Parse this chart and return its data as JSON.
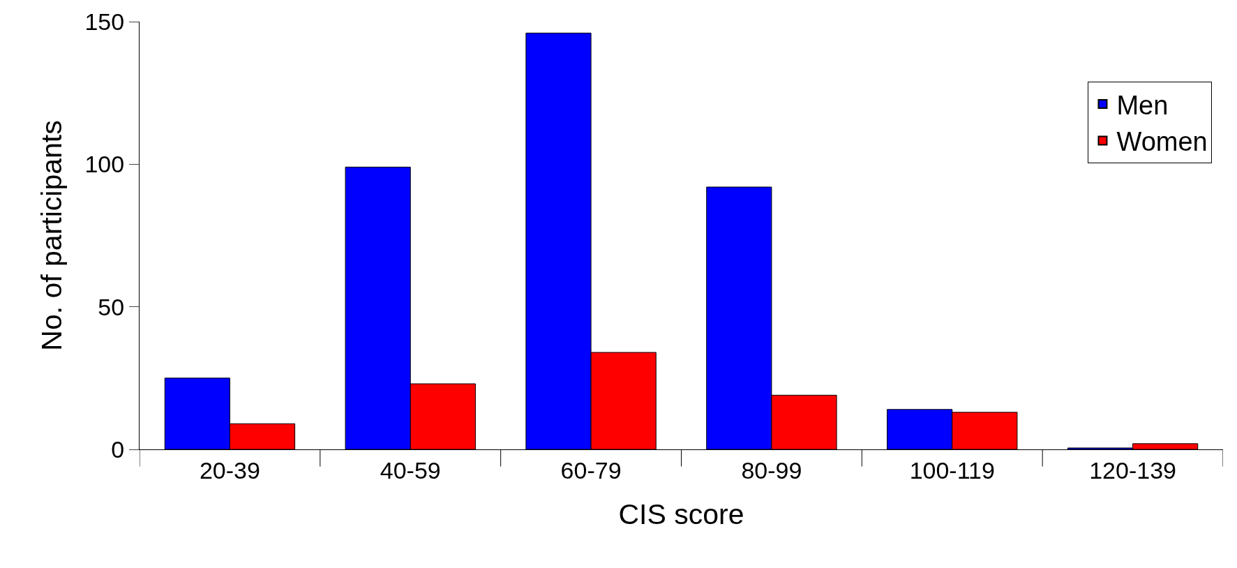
{
  "chart_data": {
    "type": "bar",
    "xlabel": "CIS score",
    "ylabel": "No. of participants",
    "categories": [
      "20-39",
      "40-59",
      "60-79",
      "80-99",
      "100-119",
      "120-139"
    ],
    "series": [
      {
        "name": "Men",
        "color": "#0000ff",
        "values": [
          25,
          99,
          146,
          92,
          14,
          0.5
        ]
      },
      {
        "name": "Women",
        "color": "#ff0000",
        "values": [
          9,
          23,
          34,
          19,
          13,
          2
        ]
      }
    ],
    "ylim": [
      0,
      150
    ],
    "yticks": [
      0,
      50,
      100,
      150
    ],
    "legend": "top right"
  }
}
